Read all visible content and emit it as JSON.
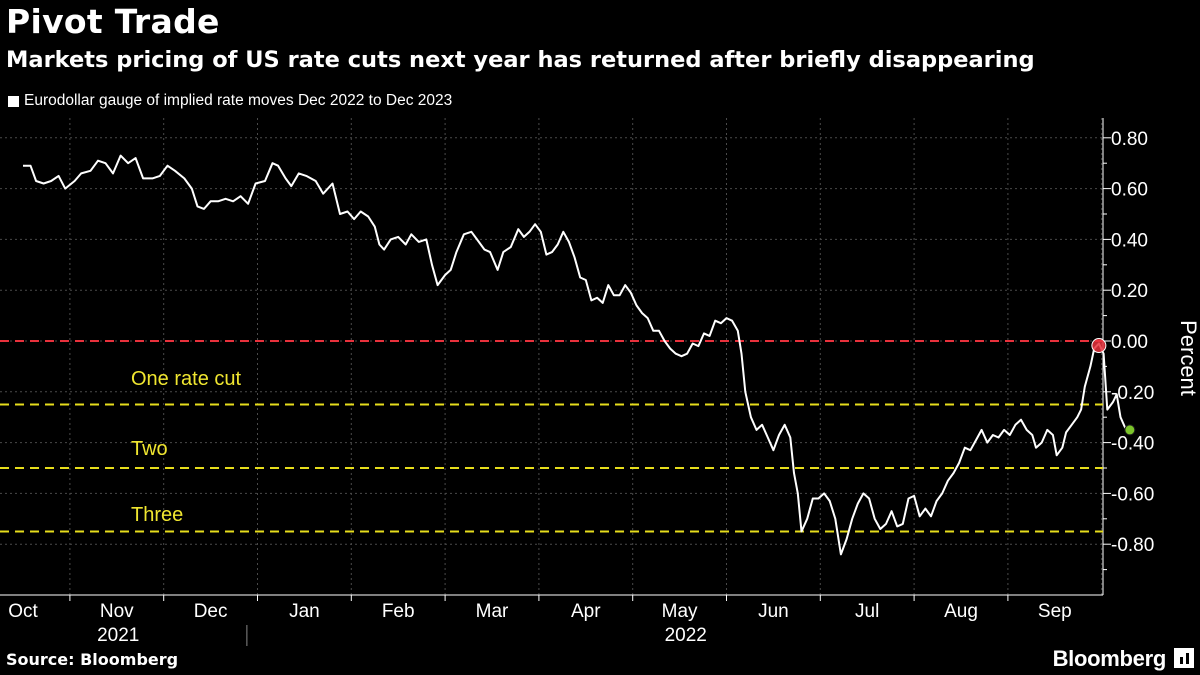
{
  "header": {
    "title": "Pivot Trade",
    "subtitle": "Markets pricing of US rate cuts next year has returned after briefly disappearing"
  },
  "footer": {
    "source": "Source: Bloomberg",
    "logo": "Bloomberg"
  },
  "colors": {
    "background": "#000000",
    "line": "#ffffff",
    "zero_line": "#e8313c",
    "cut_lines": "#e6dd1c",
    "annotation_text": "#f0e630",
    "start_marker": "#e8313c",
    "end_marker": "#7bc42a",
    "grid": "#4a4a4a"
  },
  "chart_data": {
    "type": "line",
    "title": "Pivot Trade",
    "subtitle": "Markets pricing of US rate cuts next year has returned after briefly disappearing",
    "ylabel": "Percent",
    "ylim": [
      -0.95,
      0.88
    ],
    "y_ticks": [
      "0.80",
      "0.60",
      "0.40",
      "0.20",
      "0.00",
      "-0.20",
      "-0.40",
      "-0.60",
      "-0.80"
    ],
    "y_tick_values": [
      0.8,
      0.6,
      0.4,
      0.2,
      0.0,
      -0.2,
      -0.4,
      -0.6,
      -0.8
    ],
    "x_range": [
      0,
      12.2
    ],
    "month_ticks": [
      {
        "label": "Oct",
        "pos": 0
      },
      {
        "label": "Nov",
        "pos": 1
      },
      {
        "label": "Dec",
        "pos": 2
      },
      {
        "label": "Jan",
        "pos": 3
      },
      {
        "label": "Feb",
        "pos": 4
      },
      {
        "label": "Mar",
        "pos": 5
      },
      {
        "label": "Apr",
        "pos": 6
      },
      {
        "label": "May",
        "pos": 7
      },
      {
        "label": "Jun",
        "pos": 8
      },
      {
        "label": "Jul",
        "pos": 9
      },
      {
        "label": "Aug",
        "pos": 10
      },
      {
        "label": "Sep",
        "pos": 11
      }
    ],
    "year_labels": [
      {
        "label": "2021",
        "pos": 1.25
      },
      {
        "label": "2022",
        "pos": 7.3
      }
    ],
    "year_divider_pos": 2.6,
    "reference_lines": [
      {
        "value": 0.0,
        "style": "red-dashed",
        "label": ""
      },
      {
        "value": -0.25,
        "style": "yellow-dashed",
        "label": "One rate cut"
      },
      {
        "value": -0.5,
        "style": "yellow-dashed",
        "label": "Two"
      },
      {
        "value": -0.75,
        "style": "yellow-dashed",
        "label": "Three"
      }
    ],
    "legend": "top-left",
    "series": [
      {
        "name": "Eurodollar gauge of implied rate moves Dec 2022 to Dec 2023",
        "points": [
          [
            0.0,
            0.69
          ],
          [
            0.08,
            0.69
          ],
          [
            0.14,
            0.63
          ],
          [
            0.22,
            0.62
          ],
          [
            0.3,
            0.63
          ],
          [
            0.38,
            0.65
          ],
          [
            0.45,
            0.6
          ],
          [
            0.55,
            0.63
          ],
          [
            0.62,
            0.66
          ],
          [
            0.72,
            0.67
          ],
          [
            0.8,
            0.71
          ],
          [
            0.88,
            0.7
          ],
          [
            0.96,
            0.66
          ],
          [
            1.04,
            0.73
          ],
          [
            1.12,
            0.7
          ],
          [
            1.2,
            0.72
          ],
          [
            1.28,
            0.64
          ],
          [
            1.38,
            0.64
          ],
          [
            1.46,
            0.65
          ],
          [
            1.54,
            0.69
          ],
          [
            1.62,
            0.67
          ],
          [
            1.72,
            0.64
          ],
          [
            1.8,
            0.6
          ],
          [
            1.86,
            0.53
          ],
          [
            1.93,
            0.52
          ],
          [
            2.0,
            0.55
          ],
          [
            2.08,
            0.55
          ],
          [
            2.16,
            0.56
          ],
          [
            2.24,
            0.55
          ],
          [
            2.32,
            0.57
          ],
          [
            2.4,
            0.54
          ],
          [
            2.48,
            0.62
          ],
          [
            2.58,
            0.63
          ],
          [
            2.66,
            0.7
          ],
          [
            2.72,
            0.69
          ],
          [
            2.8,
            0.64
          ],
          [
            2.86,
            0.61
          ],
          [
            2.94,
            0.66
          ],
          [
            3.02,
            0.65
          ],
          [
            3.12,
            0.63
          ],
          [
            3.2,
            0.58
          ],
          [
            3.3,
            0.62
          ],
          [
            3.38,
            0.5
          ],
          [
            3.46,
            0.51
          ],
          [
            3.53,
            0.48
          ],
          [
            3.6,
            0.51
          ],
          [
            3.68,
            0.49
          ],
          [
            3.75,
            0.45
          ],
          [
            3.8,
            0.38
          ],
          [
            3.85,
            0.36
          ],
          [
            3.92,
            0.4
          ],
          [
            4.0,
            0.41
          ],
          [
            4.08,
            0.38
          ],
          [
            4.14,
            0.42
          ],
          [
            4.22,
            0.39
          ],
          [
            4.3,
            0.4
          ],
          [
            4.36,
            0.3
          ],
          [
            4.42,
            0.22
          ],
          [
            4.5,
            0.26
          ],
          [
            4.56,
            0.28
          ],
          [
            4.62,
            0.35
          ],
          [
            4.7,
            0.42
          ],
          [
            4.78,
            0.43
          ],
          [
            4.84,
            0.4
          ],
          [
            4.92,
            0.36
          ],
          [
            4.98,
            0.35
          ],
          [
            5.06,
            0.28
          ],
          [
            5.12,
            0.35
          ],
          [
            5.2,
            0.37
          ],
          [
            5.28,
            0.44
          ],
          [
            5.34,
            0.41
          ],
          [
            5.4,
            0.43
          ],
          [
            5.46,
            0.46
          ],
          [
            5.52,
            0.43
          ],
          [
            5.58,
            0.34
          ],
          [
            5.64,
            0.35
          ],
          [
            5.7,
            0.38
          ],
          [
            5.76,
            0.43
          ],
          [
            5.82,
            0.39
          ],
          [
            5.88,
            0.33
          ],
          [
            5.94,
            0.25
          ],
          [
            6.0,
            0.24
          ],
          [
            6.06,
            0.16
          ],
          [
            6.12,
            0.17
          ],
          [
            6.18,
            0.15
          ],
          [
            6.24,
            0.22
          ],
          [
            6.3,
            0.18
          ],
          [
            6.36,
            0.18
          ],
          [
            6.42,
            0.22
          ],
          [
            6.48,
            0.19
          ],
          [
            6.54,
            0.14
          ],
          [
            6.6,
            0.11
          ],
          [
            6.66,
            0.09
          ],
          [
            6.72,
            0.04
          ],
          [
            6.78,
            0.04
          ],
          [
            6.84,
            0.0
          ],
          [
            6.9,
            -0.03
          ],
          [
            6.96,
            -0.05
          ],
          [
            7.02,
            -0.06
          ],
          [
            7.08,
            -0.05
          ],
          [
            7.14,
            -0.01
          ],
          [
            7.2,
            -0.02
          ],
          [
            7.26,
            0.03
          ],
          [
            7.32,
            0.02
          ],
          [
            7.38,
            0.08
          ],
          [
            7.44,
            0.07
          ],
          [
            7.5,
            0.09
          ],
          [
            7.56,
            0.08
          ],
          [
            7.62,
            0.04
          ],
          [
            7.66,
            -0.05
          ],
          [
            7.7,
            -0.2
          ],
          [
            7.76,
            -0.3
          ],
          [
            7.82,
            -0.35
          ],
          [
            7.88,
            -0.33
          ],
          [
            7.94,
            -0.38
          ],
          [
            8.0,
            -0.43
          ],
          [
            8.06,
            -0.37
          ],
          [
            8.12,
            -0.33
          ],
          [
            8.18,
            -0.38
          ],
          [
            8.22,
            -0.52
          ],
          [
            8.26,
            -0.6
          ],
          [
            8.3,
            -0.75
          ],
          [
            8.36,
            -0.7
          ],
          [
            8.42,
            -0.62
          ],
          [
            8.48,
            -0.62
          ],
          [
            8.54,
            -0.6
          ],
          [
            8.6,
            -0.63
          ],
          [
            8.66,
            -0.7
          ],
          [
            8.72,
            -0.84
          ],
          [
            8.78,
            -0.78
          ],
          [
            8.84,
            -0.7
          ],
          [
            8.9,
            -0.64
          ],
          [
            8.96,
            -0.6
          ],
          [
            9.02,
            -0.62
          ],
          [
            9.08,
            -0.7
          ],
          [
            9.14,
            -0.74
          ],
          [
            9.2,
            -0.72
          ],
          [
            9.26,
            -0.67
          ],
          [
            9.32,
            -0.73
          ],
          [
            9.38,
            -0.72
          ],
          [
            9.44,
            -0.62
          ],
          [
            9.5,
            -0.61
          ],
          [
            9.56,
            -0.69
          ],
          [
            9.62,
            -0.66
          ],
          [
            9.68,
            -0.69
          ],
          [
            9.74,
            -0.63
          ],
          [
            9.8,
            -0.6
          ],
          [
            9.86,
            -0.55
          ],
          [
            9.92,
            -0.52
          ],
          [
            9.98,
            -0.48
          ],
          [
            10.04,
            -0.42
          ],
          [
            10.1,
            -0.43
          ],
          [
            10.16,
            -0.39
          ],
          [
            10.22,
            -0.35
          ],
          [
            10.28,
            -0.4
          ],
          [
            10.34,
            -0.37
          ],
          [
            10.4,
            -0.38
          ],
          [
            10.46,
            -0.35
          ],
          [
            10.52,
            -0.37
          ],
          [
            10.58,
            -0.33
          ],
          [
            10.64,
            -0.31
          ],
          [
            10.7,
            -0.35
          ],
          [
            10.76,
            -0.37
          ],
          [
            10.8,
            -0.42
          ],
          [
            10.86,
            -0.4
          ],
          [
            10.92,
            -0.35
          ],
          [
            10.98,
            -0.37
          ],
          [
            11.02,
            -0.45
          ],
          [
            11.08,
            -0.42
          ],
          [
            11.12,
            -0.36
          ],
          [
            11.18,
            -0.33
          ],
          [
            11.24,
            -0.3
          ],
          [
            11.28,
            -0.27
          ],
          [
            11.32,
            -0.18
          ],
          [
            11.38,
            -0.1
          ],
          [
            11.42,
            -0.03
          ],
          [
            11.47,
            -0.01
          ],
          [
            11.52,
            -0.05
          ],
          [
            11.56,
            -0.27
          ],
          [
            11.62,
            -0.24
          ],
          [
            11.66,
            -0.21
          ],
          [
            11.7,
            -0.3
          ],
          [
            11.76,
            -0.35
          ],
          [
            11.8,
            -0.35
          ]
        ]
      }
    ]
  }
}
